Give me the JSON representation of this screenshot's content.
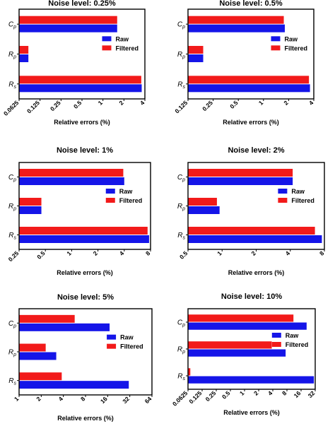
{
  "chart_data": [
    {
      "type": "bar",
      "orientation": "horizontal",
      "title": "Noise level: 0.25%",
      "xlabel": "Relative errors (%)",
      "ylabel": "",
      "x_scale": "log2",
      "xlim": [
        0.0625,
        4
      ],
      "xticks": [
        "0.0625",
        "0.125",
        "0.25",
        "0.5",
        "1",
        "2",
        "4"
      ],
      "categories": [
        "Cp",
        "Rp",
        "Rs"
      ],
      "series": [
        {
          "name": "Raw",
          "color": "#1515e8",
          "values": [
            1.6,
            0.085,
            3.6
          ]
        },
        {
          "name": "Filtered",
          "color": "#f21a1a",
          "values": [
            1.6,
            0.085,
            3.55
          ]
        }
      ],
      "legend_position": "right",
      "grid": false
    },
    {
      "type": "bar",
      "orientation": "horizontal",
      "title": "Noise level: 0.5%",
      "xlabel": "Relative errors (%)",
      "ylabel": "",
      "x_scale": "log2",
      "xlim": [
        0.125,
        4
      ],
      "xticks": [
        "0.125",
        "0.25",
        "0.5",
        "1",
        "2",
        "4"
      ],
      "categories": [
        "Cp",
        "Rp",
        "Rs"
      ],
      "series": [
        {
          "name": "Raw",
          "color": "#1515e8",
          "values": [
            1.8,
            0.19,
            3.6
          ]
        },
        {
          "name": "Filtered",
          "color": "#f21a1a",
          "values": [
            1.75,
            0.19,
            3.5
          ]
        }
      ],
      "legend_position": "right",
      "grid": false
    },
    {
      "type": "bar",
      "orientation": "horizontal",
      "title": "Noise level: 1%",
      "xlabel": "Relative errors (%)",
      "ylabel": "",
      "x_scale": "log2",
      "xlim": [
        0.25,
        8
      ],
      "xticks": [
        "0.25",
        "0.5",
        "1",
        "2",
        "4",
        "8"
      ],
      "categories": [
        "Cp",
        "Rp",
        "Rs"
      ],
      "series": [
        {
          "name": "Raw",
          "color": "#1515e8",
          "values": [
            4,
            0.45,
            7.7
          ]
        },
        {
          "name": "Filtered",
          "color": "#f21a1a",
          "values": [
            3.9,
            0.45,
            7.4
          ]
        }
      ],
      "legend_position": "right",
      "grid": false
    },
    {
      "type": "bar",
      "orientation": "horizontal",
      "title": "Noise level: 2%",
      "xlabel": "Relative errors (%)",
      "ylabel": "",
      "x_scale": "log2",
      "xlim": [
        0.5,
        8
      ],
      "xticks": [
        "0.5",
        "1",
        "2",
        "4",
        "8"
      ],
      "categories": [
        "Cp",
        "Rp",
        "Rs"
      ],
      "series": [
        {
          "name": "Raw",
          "color": "#1515e8",
          "values": [
            4.2,
            0.95,
            7.6
          ]
        },
        {
          "name": "Filtered",
          "color": "#f21a1a",
          "values": [
            4.2,
            0.9,
            6.6
          ]
        }
      ],
      "legend_position": "right",
      "grid": false
    },
    {
      "type": "bar",
      "orientation": "horizontal",
      "title": "Noise level: 5%",
      "xlabel": "Relative errors (%)",
      "ylabel": "",
      "x_scale": "log2",
      "xlim": [
        1,
        64
      ],
      "xticks": [
        "1",
        "2",
        "4",
        "8",
        "16",
        "32",
        "64"
      ],
      "categories": [
        "Cp",
        "Rp",
        "Rs"
      ],
      "series": [
        {
          "name": "Raw",
          "color": "#1515e8",
          "values": [
            17,
            3.2,
            31
          ]
        },
        {
          "name": "Filtered",
          "color": "#f21a1a",
          "values": [
            5.7,
            2.3,
            3.8
          ]
        }
      ],
      "legend_position": "right",
      "grid": false
    },
    {
      "type": "bar",
      "orientation": "horizontal",
      "title": "Noise level: 10%",
      "xlabel": "Relative errors (%)",
      "ylabel": "",
      "x_scale": "log2",
      "xlim": [
        0.0625,
        32
      ],
      "xticks": [
        "0.0625",
        "0.125",
        "0.25",
        "0.5",
        "1",
        "2",
        "4",
        "8",
        "16",
        "32"
      ],
      "categories": [
        "Cp",
        "Rp",
        "Rs"
      ],
      "series": [
        {
          "name": "Raw",
          "color": "#1515e8",
          "values": [
            21,
            7.5,
            30
          ]
        },
        {
          "name": "Filtered",
          "color": "#f21a1a",
          "values": [
            11,
            3.8,
            0.07
          ]
        }
      ],
      "legend_position": "right",
      "grid": false
    }
  ]
}
